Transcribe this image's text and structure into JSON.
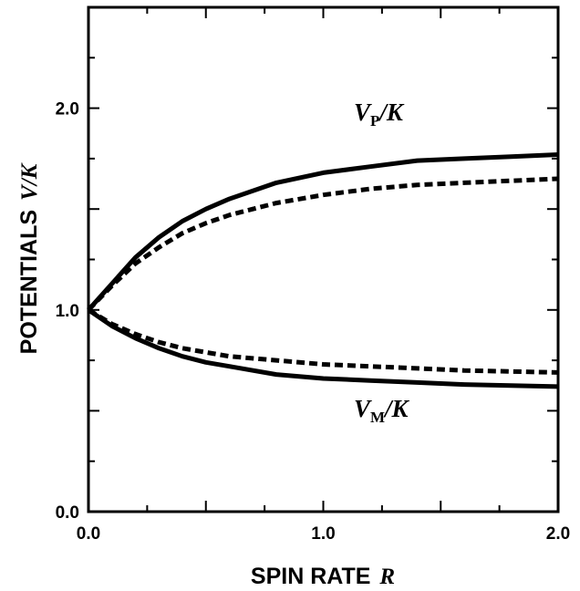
{
  "chart_data": {
    "type": "line",
    "xlabel_prefix": "SPIN RATE",
    "xlabel_var": "R",
    "ylabel_prefix": "POTENTIALS",
    "ylabel_var": "V/K",
    "xlim": [
      0,
      2
    ],
    "ylim": [
      0,
      2.5
    ],
    "x_ticks": [
      "0.0",
      "1.0",
      "2.0"
    ],
    "y_ticks": [
      "0.0",
      "1.0",
      "2.0"
    ],
    "grid": false,
    "x": [
      0,
      0.1,
      0.2,
      0.3,
      0.4,
      0.5,
      0.6,
      0.8,
      1.0,
      1.2,
      1.4,
      1.6,
      1.8,
      2.0
    ],
    "series": [
      {
        "label": "VP/K",
        "style": "solid",
        "values": [
          1.0,
          1.13,
          1.26,
          1.36,
          1.44,
          1.5,
          1.55,
          1.63,
          1.68,
          1.71,
          1.74,
          1.75,
          1.76,
          1.77
        ]
      },
      {
        "label": "",
        "style": "dashed",
        "values": [
          1.0,
          1.12,
          1.23,
          1.31,
          1.38,
          1.43,
          1.47,
          1.53,
          1.57,
          1.6,
          1.62,
          1.63,
          1.64,
          1.65
        ]
      },
      {
        "label": "VM/K",
        "style": "solid",
        "values": [
          1.0,
          0.92,
          0.86,
          0.81,
          0.77,
          0.74,
          0.72,
          0.68,
          0.66,
          0.65,
          0.64,
          0.63,
          0.625,
          0.62
        ]
      },
      {
        "label": "",
        "style": "dashed",
        "values": [
          1.0,
          0.93,
          0.88,
          0.84,
          0.81,
          0.79,
          0.77,
          0.75,
          0.73,
          0.72,
          0.71,
          0.7,
          0.695,
          0.69
        ]
      }
    ],
    "annotations": [
      {
        "text_main": "V",
        "text_sub": "P",
        "text_tail": "/K",
        "at_x": 1.13,
        "at_y": 1.94
      },
      {
        "text_main": "V",
        "text_sub": "M",
        "text_tail": "/K",
        "at_x": 1.13,
        "at_y": 0.47
      }
    ]
  }
}
